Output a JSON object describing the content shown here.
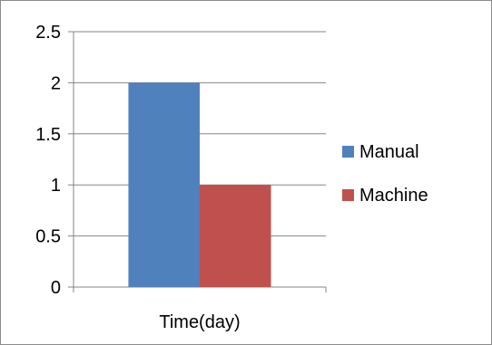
{
  "chart_data": {
    "type": "bar",
    "categories": [
      "Time(day)"
    ],
    "series": [
      {
        "name": "Manual",
        "values": [
          2
        ],
        "color": "#4F81BD"
      },
      {
        "name": "Machine",
        "values": [
          1
        ],
        "color": "#C0504D"
      }
    ],
    "ylim": [
      0,
      2.5
    ],
    "yticks": [
      "0",
      "0.5",
      "1",
      "1.5",
      "2",
      "2.5"
    ],
    "grid": true,
    "legend_position": "right"
  }
}
